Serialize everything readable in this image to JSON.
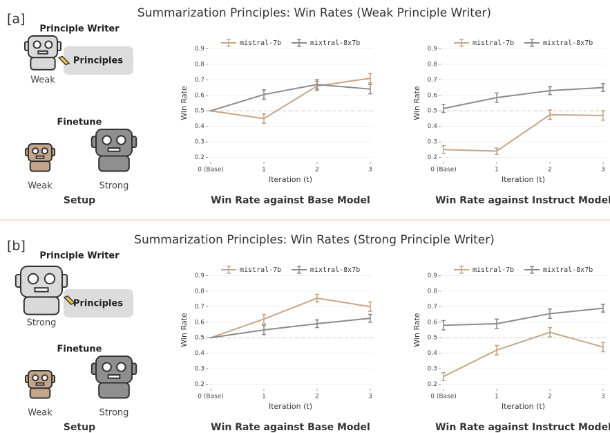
{
  "panels": [
    {
      "label": "[a]",
      "title": "Summarization Principles: Win Rates (Weak Principle Writer)",
      "setup": {
        "writer_heading": "Principle Writer",
        "principles": "Principles",
        "writer_label": "Weak",
        "finetune_heading": "Finetune",
        "models": [
          "Weak",
          "Strong"
        ],
        "caption": "Setup"
      }
    },
    {
      "label": "[b]",
      "title": "Summarization Principles: Win Rates (Strong Principle Writer)",
      "setup": {
        "writer_heading": "Principle Writer",
        "principles": "Principles",
        "writer_label": "Strong",
        "finetune_heading": "Finetune",
        "models": [
          "Weak",
          "Strong"
        ],
        "caption": "Setup"
      }
    }
  ],
  "chart_data": [
    {
      "type": "line",
      "caption": "Win Rate against Base Model",
      "x_label": "Iteration (t)",
      "y_label": "Win Rate",
      "categories": [
        "0 (Base)",
        "1",
        "2",
        "3"
      ],
      "ylim": [
        0.18,
        0.92
      ],
      "yticks": [
        0.2,
        0.3,
        0.4,
        0.5,
        0.6,
        0.7,
        0.8,
        0.9
      ],
      "grid": true,
      "reference_line": 0.5,
      "series": [
        {
          "name": "mistral-7b",
          "color": "#c9a584",
          "values": [
            0.5,
            0.45,
            0.66,
            0.71
          ],
          "errors": [
            0,
            0.03,
            0.03,
            0.03
          ]
        },
        {
          "name": "mixtral-8x7b",
          "color": "#8c8c8c",
          "values": [
            0.5,
            0.605,
            0.67,
            0.64
          ],
          "errors": [
            0,
            0.03,
            0.03,
            0.03
          ]
        }
      ]
    },
    {
      "type": "line",
      "caption": "Win Rate against Instruct Model",
      "x_label": "Iteration (t)",
      "y_label": "Win Rate",
      "categories": [
        "0 (Base)",
        "1",
        "2",
        "3"
      ],
      "ylim": [
        0.18,
        0.92
      ],
      "yticks": [
        0.2,
        0.3,
        0.4,
        0.5,
        0.6,
        0.7,
        0.8,
        0.9
      ],
      "grid": true,
      "reference_line": 0.5,
      "series": [
        {
          "name": "mistral-7b",
          "color": "#c9a584",
          "values": [
            0.25,
            0.24,
            0.475,
            0.47
          ],
          "errors": [
            0.025,
            0.02,
            0.03,
            0.03
          ]
        },
        {
          "name": "mixtral-8x7b",
          "color": "#8c8c8c",
          "values": [
            0.515,
            0.585,
            0.63,
            0.65
          ],
          "errors": [
            0.025,
            0.03,
            0.025,
            0.025
          ]
        }
      ]
    },
    {
      "type": "line",
      "caption": "Win Rate against Base Model",
      "x_label": "Iteration (t)",
      "y_label": "Win Rate",
      "categories": [
        "0 (Base)",
        "1",
        "2",
        "3"
      ],
      "ylim": [
        0.18,
        0.92
      ],
      "yticks": [
        0.2,
        0.3,
        0.4,
        0.5,
        0.6,
        0.7,
        0.8,
        0.9
      ],
      "grid": true,
      "reference_line": 0.5,
      "series": [
        {
          "name": "mistral-7b",
          "color": "#c9a584",
          "values": [
            0.5,
            0.62,
            0.755,
            0.7
          ],
          "errors": [
            0,
            0.03,
            0.025,
            0.03
          ]
        },
        {
          "name": "mixtral-8x7b",
          "color": "#8c8c8c",
          "values": [
            0.5,
            0.55,
            0.59,
            0.625
          ],
          "errors": [
            0,
            0.03,
            0.025,
            0.025
          ]
        }
      ]
    },
    {
      "type": "line",
      "caption": "Win Rate against Instruct Model",
      "x_label": "Iteration (t)",
      "y_label": "Win Rate",
      "categories": [
        "0 (Base)",
        "1",
        "2",
        "3"
      ],
      "ylim": [
        0.18,
        0.92
      ],
      "yticks": [
        0.2,
        0.3,
        0.4,
        0.5,
        0.6,
        0.7,
        0.8,
        0.9
      ],
      "grid": true,
      "reference_line": 0.5,
      "series": [
        {
          "name": "mistral-7b",
          "color": "#c9a584",
          "values": [
            0.25,
            0.42,
            0.535,
            0.44
          ],
          "errors": [
            0.025,
            0.03,
            0.03,
            0.03
          ]
        },
        {
          "name": "mixtral-8x7b",
          "color": "#8c8c8c",
          "values": [
            0.58,
            0.59,
            0.655,
            0.69
          ],
          "errors": [
            0.03,
            0.03,
            0.03,
            0.025
          ]
        }
      ]
    }
  ]
}
